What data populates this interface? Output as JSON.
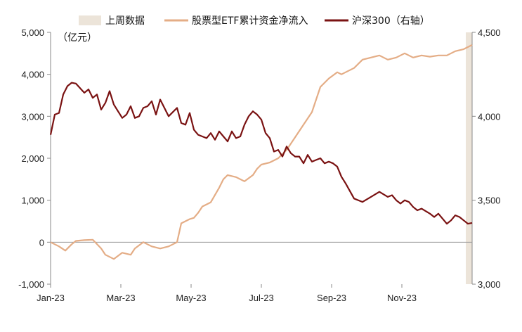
{
  "chart_data": {
    "type": "line",
    "x_ticks": [
      "Jan-23",
      "Mar-23",
      "May-23",
      "Jul-23",
      "Sep-23",
      "Nov-23"
    ],
    "y_left": {
      "label": "（亿元）",
      "min": -1000,
      "max": 5000,
      "ticks": [
        "-1,000",
        "0",
        "1,000",
        "2,000",
        "3,000",
        "4,000",
        "5,000"
      ]
    },
    "y_right": {
      "min": 3000,
      "max": 4500,
      "ticks": [
        "3,000",
        "3,500",
        "4,000",
        "4,500"
      ]
    },
    "legend": {
      "position": "top",
      "items": [
        {
          "name": "上周数据",
          "color": "#ece4d9",
          "kind": "band"
        },
        {
          "name": "股票型ETF累计资金净流入",
          "color": "#e4ad86",
          "kind": "line"
        },
        {
          "name": "沪深300（右轴）",
          "color": "#7a1212",
          "kind": "line"
        }
      ]
    },
    "highlight": {
      "name": "上周数据",
      "from": 0.985,
      "to": 1.0
    },
    "series": [
      {
        "name": "股票型ETF累计资金净流入",
        "axis": "left",
        "color": "#e4ad86",
        "x": [
          0,
          0.02,
          0.035,
          0.05,
          0.06,
          0.08,
          0.1,
          0.12,
          0.13,
          0.15,
          0.17,
          0.19,
          0.2,
          0.22,
          0.24,
          0.26,
          0.28,
          0.3,
          0.31,
          0.33,
          0.34,
          0.35,
          0.36,
          0.38,
          0.4,
          0.41,
          0.42,
          0.44,
          0.46,
          0.48,
          0.49,
          0.5,
          0.52,
          0.54,
          0.56,
          0.58,
          0.6,
          0.62,
          0.64,
          0.66,
          0.68,
          0.69,
          0.7,
          0.72,
          0.74,
          0.76,
          0.78,
          0.8,
          0.82,
          0.84,
          0.85,
          0.86,
          0.88,
          0.9,
          0.92,
          0.94,
          0.96,
          0.98,
          1.0
        ],
        "values": [
          0,
          -100,
          -200,
          -50,
          30,
          50,
          60,
          -150,
          -300,
          -400,
          -250,
          -300,
          -150,
          0,
          -100,
          -150,
          -100,
          0,
          450,
          550,
          580,
          700,
          850,
          950,
          1300,
          1500,
          1600,
          1550,
          1450,
          1600,
          1750,
          1850,
          1900,
          2000,
          2200,
          2500,
          2800,
          3100,
          3700,
          3900,
          4050,
          4000,
          4050,
          4150,
          4350,
          4400,
          4450,
          4350,
          4400,
          4500,
          4450,
          4400,
          4450,
          4420,
          4450,
          4450,
          4550,
          4600,
          4700
        ]
      },
      {
        "name": "沪深300（右轴）",
        "axis": "right",
        "color": "#7a1212",
        "x": [
          0,
          0.01,
          0.02,
          0.03,
          0.04,
          0.05,
          0.06,
          0.08,
          0.09,
          0.1,
          0.11,
          0.12,
          0.13,
          0.14,
          0.15,
          0.16,
          0.17,
          0.18,
          0.19,
          0.2,
          0.21,
          0.22,
          0.23,
          0.24,
          0.25,
          0.26,
          0.27,
          0.28,
          0.3,
          0.31,
          0.32,
          0.33,
          0.34,
          0.35,
          0.36,
          0.37,
          0.38,
          0.39,
          0.4,
          0.41,
          0.42,
          0.43,
          0.44,
          0.45,
          0.46,
          0.47,
          0.48,
          0.49,
          0.5,
          0.51,
          0.52,
          0.53,
          0.54,
          0.55,
          0.56,
          0.57,
          0.58,
          0.59,
          0.6,
          0.61,
          0.62,
          0.63,
          0.64,
          0.65,
          0.66,
          0.67,
          0.68,
          0.69,
          0.7,
          0.72,
          0.74,
          0.76,
          0.78,
          0.8,
          0.81,
          0.82,
          0.83,
          0.84,
          0.85,
          0.86,
          0.87,
          0.88,
          0.9,
          0.91,
          0.92,
          0.93,
          0.94,
          0.95,
          0.96,
          0.97,
          0.98,
          0.985,
          0.99,
          1.0
        ],
        "values": [
          3890,
          4010,
          4020,
          4130,
          4180,
          4200,
          4195,
          4140,
          4160,
          4110,
          4130,
          4040,
          4080,
          4150,
          4070,
          4030,
          3990,
          4010,
          4060,
          3990,
          4000,
          4050,
          4060,
          4090,
          4010,
          4100,
          4050,
          4000,
          4050,
          3960,
          3950,
          4020,
          3920,
          3890,
          3880,
          3870,
          3900,
          3860,
          3910,
          3880,
          3850,
          3910,
          3870,
          3880,
          3950,
          4000,
          4030,
          4010,
          3980,
          3900,
          3870,
          3790,
          3800,
          3760,
          3820,
          3780,
          3760,
          3760,
          3720,
          3770,
          3730,
          3740,
          3750,
          3720,
          3730,
          3720,
          3700,
          3640,
          3600,
          3510,
          3490,
          3520,
          3550,
          3520,
          3530,
          3500,
          3480,
          3500,
          3490,
          3460,
          3440,
          3450,
          3420,
          3400,
          3420,
          3390,
          3360,
          3380,
          3410,
          3400,
          3380,
          3370,
          3360,
          3365
        ]
      }
    ]
  }
}
